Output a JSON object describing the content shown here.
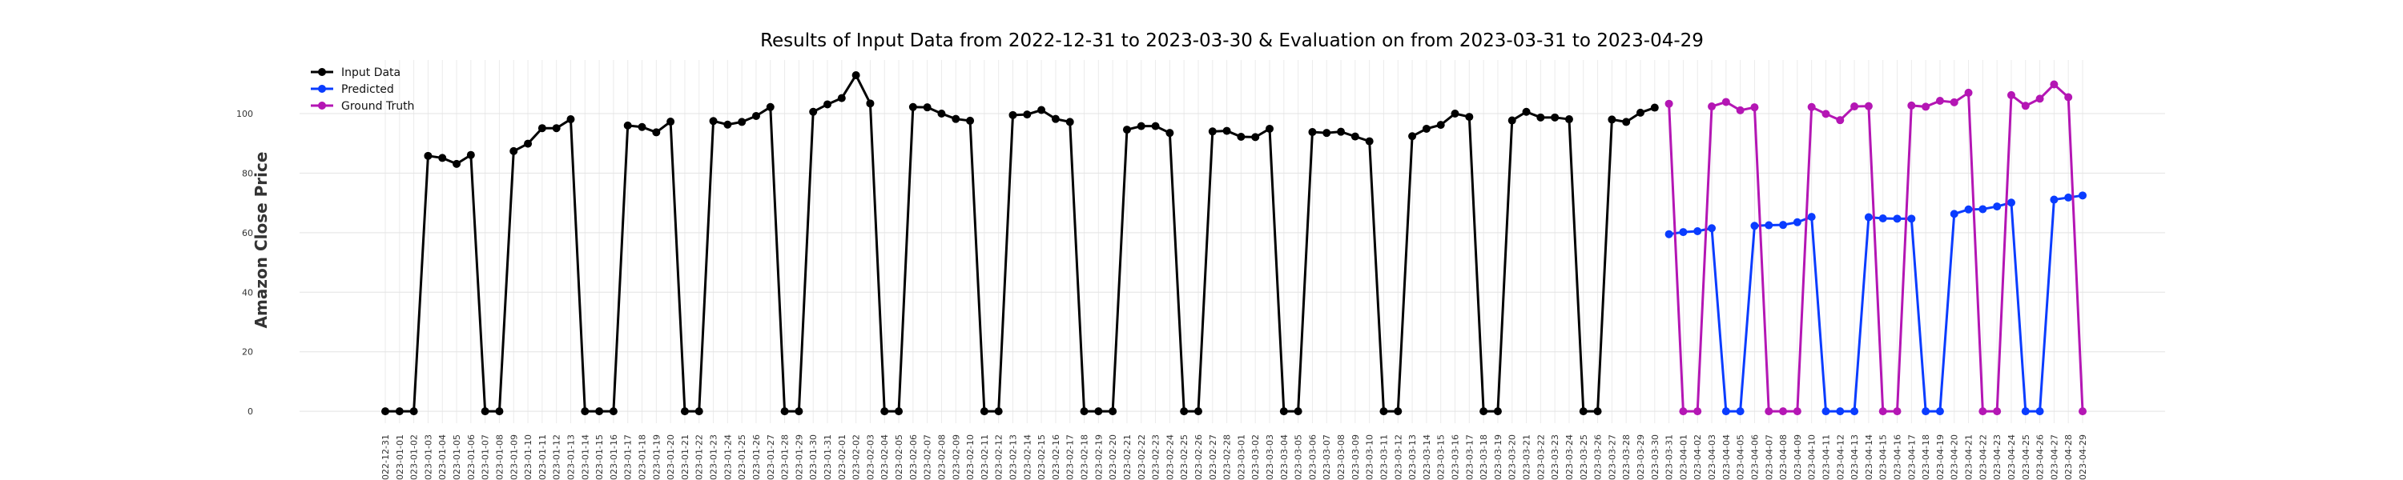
{
  "chart_data": {
    "type": "line",
    "title": "Results of Input Data from 2022-12-31 to 2023-03-30 & Evaluation on from 2023-03-31 to 2023-04-29",
    "y_label": "Amazon Close Price",
    "categories": [
      "2022-12-31",
      "2023-01-01",
      "2023-01-02",
      "2023-01-03",
      "2023-01-04",
      "2023-01-05",
      "2023-01-06",
      "2023-01-07",
      "2023-01-08",
      "2023-01-09",
      "2023-01-10",
      "2023-01-11",
      "2023-01-12",
      "2023-01-13",
      "2023-01-14",
      "2023-01-15",
      "2023-01-16",
      "2023-01-17",
      "2023-01-18",
      "2023-01-19",
      "2023-01-20",
      "2023-01-21",
      "2023-01-22",
      "2023-01-23",
      "2023-01-24",
      "2023-01-25",
      "2023-01-26",
      "2023-01-27",
      "2023-01-28",
      "2023-01-29",
      "2023-01-30",
      "2023-01-31",
      "2023-02-01",
      "2023-02-02",
      "2023-02-03",
      "2023-02-04",
      "2023-02-05",
      "2023-02-06",
      "2023-02-07",
      "2023-02-08",
      "2023-02-09",
      "2023-02-10",
      "2023-02-11",
      "2023-02-12",
      "2023-02-13",
      "2023-02-14",
      "2023-02-15",
      "2023-02-16",
      "2023-02-17",
      "2023-02-18",
      "2023-02-19",
      "2023-02-20",
      "2023-02-21",
      "2023-02-22",
      "2023-02-23",
      "2023-02-24",
      "2023-02-25",
      "2023-02-26",
      "2023-02-27",
      "2023-02-28",
      "2023-03-01",
      "2023-03-02",
      "2023-03-03",
      "2023-03-04",
      "2023-03-05",
      "2023-03-06",
      "2023-03-07",
      "2023-03-08",
      "2023-03-09",
      "2023-03-10",
      "2023-03-11",
      "2023-03-12",
      "2023-03-13",
      "2023-03-14",
      "2023-03-15",
      "2023-03-16",
      "2023-03-17",
      "2023-03-18",
      "2023-03-19",
      "2023-03-20",
      "2023-03-21",
      "2023-03-22",
      "2023-03-23",
      "2023-03-24",
      "2023-03-25",
      "2023-03-26",
      "2023-03-27",
      "2023-03-28",
      "2023-03-29",
      "2023-03-30",
      "2023-03-31",
      "2023-04-01",
      "2023-04-02",
      "2023-04-03",
      "2023-04-04",
      "2023-04-05",
      "2023-04-06",
      "2023-04-07",
      "2023-04-08",
      "2023-04-09",
      "2023-04-10",
      "2023-04-11",
      "2023-04-12",
      "2023-04-13",
      "2023-04-14",
      "2023-04-15",
      "2023-04-16",
      "2023-04-17",
      "2023-04-18",
      "2023-04-19",
      "2023-04-20",
      "2023-04-21",
      "2023-04-22",
      "2023-04-23",
      "2023-04-24",
      "2023-04-25",
      "2023-04-26",
      "2023-04-27",
      "2023-04-28",
      "2023-04-29"
    ],
    "series": [
      {
        "name": "Input Data",
        "color": "#000000",
        "values": [
          0,
          0,
          0,
          85.8,
          85.1,
          83.1,
          86.1,
          0,
          0,
          87.4,
          89.9,
          95.1,
          95.1,
          98.1,
          0,
          0,
          0,
          96.0,
          95.5,
          93.7,
          97.3,
          0,
          0,
          97.5,
          96.3,
          97.2,
          99.2,
          102.2,
          0,
          0,
          100.6,
          103.1,
          105.2,
          112.9,
          103.4,
          0,
          0,
          102.2,
          102.1,
          100.0,
          98.2,
          97.6,
          0,
          0,
          99.5,
          99.7,
          101.2,
          98.2,
          97.2,
          0,
          0,
          0,
          94.6,
          95.8,
          95.8,
          93.5,
          0,
          0,
          94.0,
          94.2,
          92.2,
          92.1,
          94.9,
          0,
          0,
          93.8,
          93.5,
          93.9,
          92.3,
          90.7,
          0,
          0,
          92.4,
          94.9,
          96.2,
          100.0,
          98.9,
          0,
          0,
          97.7,
          100.6,
          98.7,
          98.7,
          98.1,
          0,
          0,
          98.0,
          97.2,
          100.3,
          102.0,
          null,
          null,
          null,
          null,
          null,
          null,
          null,
          null,
          null,
          null,
          null,
          null,
          null,
          null,
          null,
          null,
          null,
          null,
          null,
          null,
          null,
          null,
          null,
          null,
          null,
          null,
          null,
          null,
          null,
          null
        ]
      },
      {
        "name": "Predicted",
        "color": "#0a3cff",
        "values": [
          null,
          null,
          null,
          null,
          null,
          null,
          null,
          null,
          null,
          null,
          null,
          null,
          null,
          null,
          null,
          null,
          null,
          null,
          null,
          null,
          null,
          null,
          null,
          null,
          null,
          null,
          null,
          null,
          null,
          null,
          null,
          null,
          null,
          null,
          null,
          null,
          null,
          null,
          null,
          null,
          null,
          null,
          null,
          null,
          null,
          null,
          null,
          null,
          null,
          null,
          null,
          null,
          null,
          null,
          null,
          null,
          null,
          null,
          null,
          null,
          null,
          null,
          null,
          null,
          null,
          null,
          null,
          null,
          null,
          null,
          null,
          null,
          null,
          null,
          null,
          null,
          null,
          null,
          null,
          null,
          null,
          null,
          null,
          null,
          null,
          null,
          null,
          null,
          null,
          null,
          59.5,
          60.2,
          60.5,
          61.5,
          0,
          0,
          62.3,
          62.5,
          62.6,
          63.5,
          65.3,
          0,
          0,
          0,
          65.2,
          64.8,
          64.7,
          64.7,
          0,
          0,
          66.3,
          67.8,
          67.9,
          68.8,
          70.1,
          0,
          0,
          71.1,
          71.8,
          72.5
        ]
      },
      {
        "name": "Ground Truth",
        "color": "#b416b4",
        "values": [
          null,
          null,
          null,
          null,
          null,
          null,
          null,
          null,
          null,
          null,
          null,
          null,
          null,
          null,
          null,
          null,
          null,
          null,
          null,
          null,
          null,
          null,
          null,
          null,
          null,
          null,
          null,
          null,
          null,
          null,
          null,
          null,
          null,
          null,
          null,
          null,
          null,
          null,
          null,
          null,
          null,
          null,
          null,
          null,
          null,
          null,
          null,
          null,
          null,
          null,
          null,
          null,
          null,
          null,
          null,
          null,
          null,
          null,
          null,
          null,
          null,
          null,
          null,
          null,
          null,
          null,
          null,
          null,
          null,
          null,
          null,
          null,
          null,
          null,
          null,
          null,
          null,
          null,
          null,
          null,
          null,
          null,
          null,
          null,
          null,
          null,
          null,
          null,
          null,
          null,
          103.3,
          0,
          0,
          102.4,
          103.9,
          101.1,
          102.1,
          0,
          0,
          0,
          102.2,
          99.9,
          97.8,
          102.4,
          102.5,
          0,
          0,
          102.7,
          102.3,
          104.3,
          103.8,
          107.0,
          0,
          0,
          106.2,
          102.6,
          105.0,
          109.8,
          105.5,
          0
        ]
      }
    ],
    "ylim": [
      -4,
      118
    ],
    "yticks": [
      0,
      20,
      40,
      60,
      80,
      100
    ],
    "grid": true,
    "legend": "upper left"
  }
}
